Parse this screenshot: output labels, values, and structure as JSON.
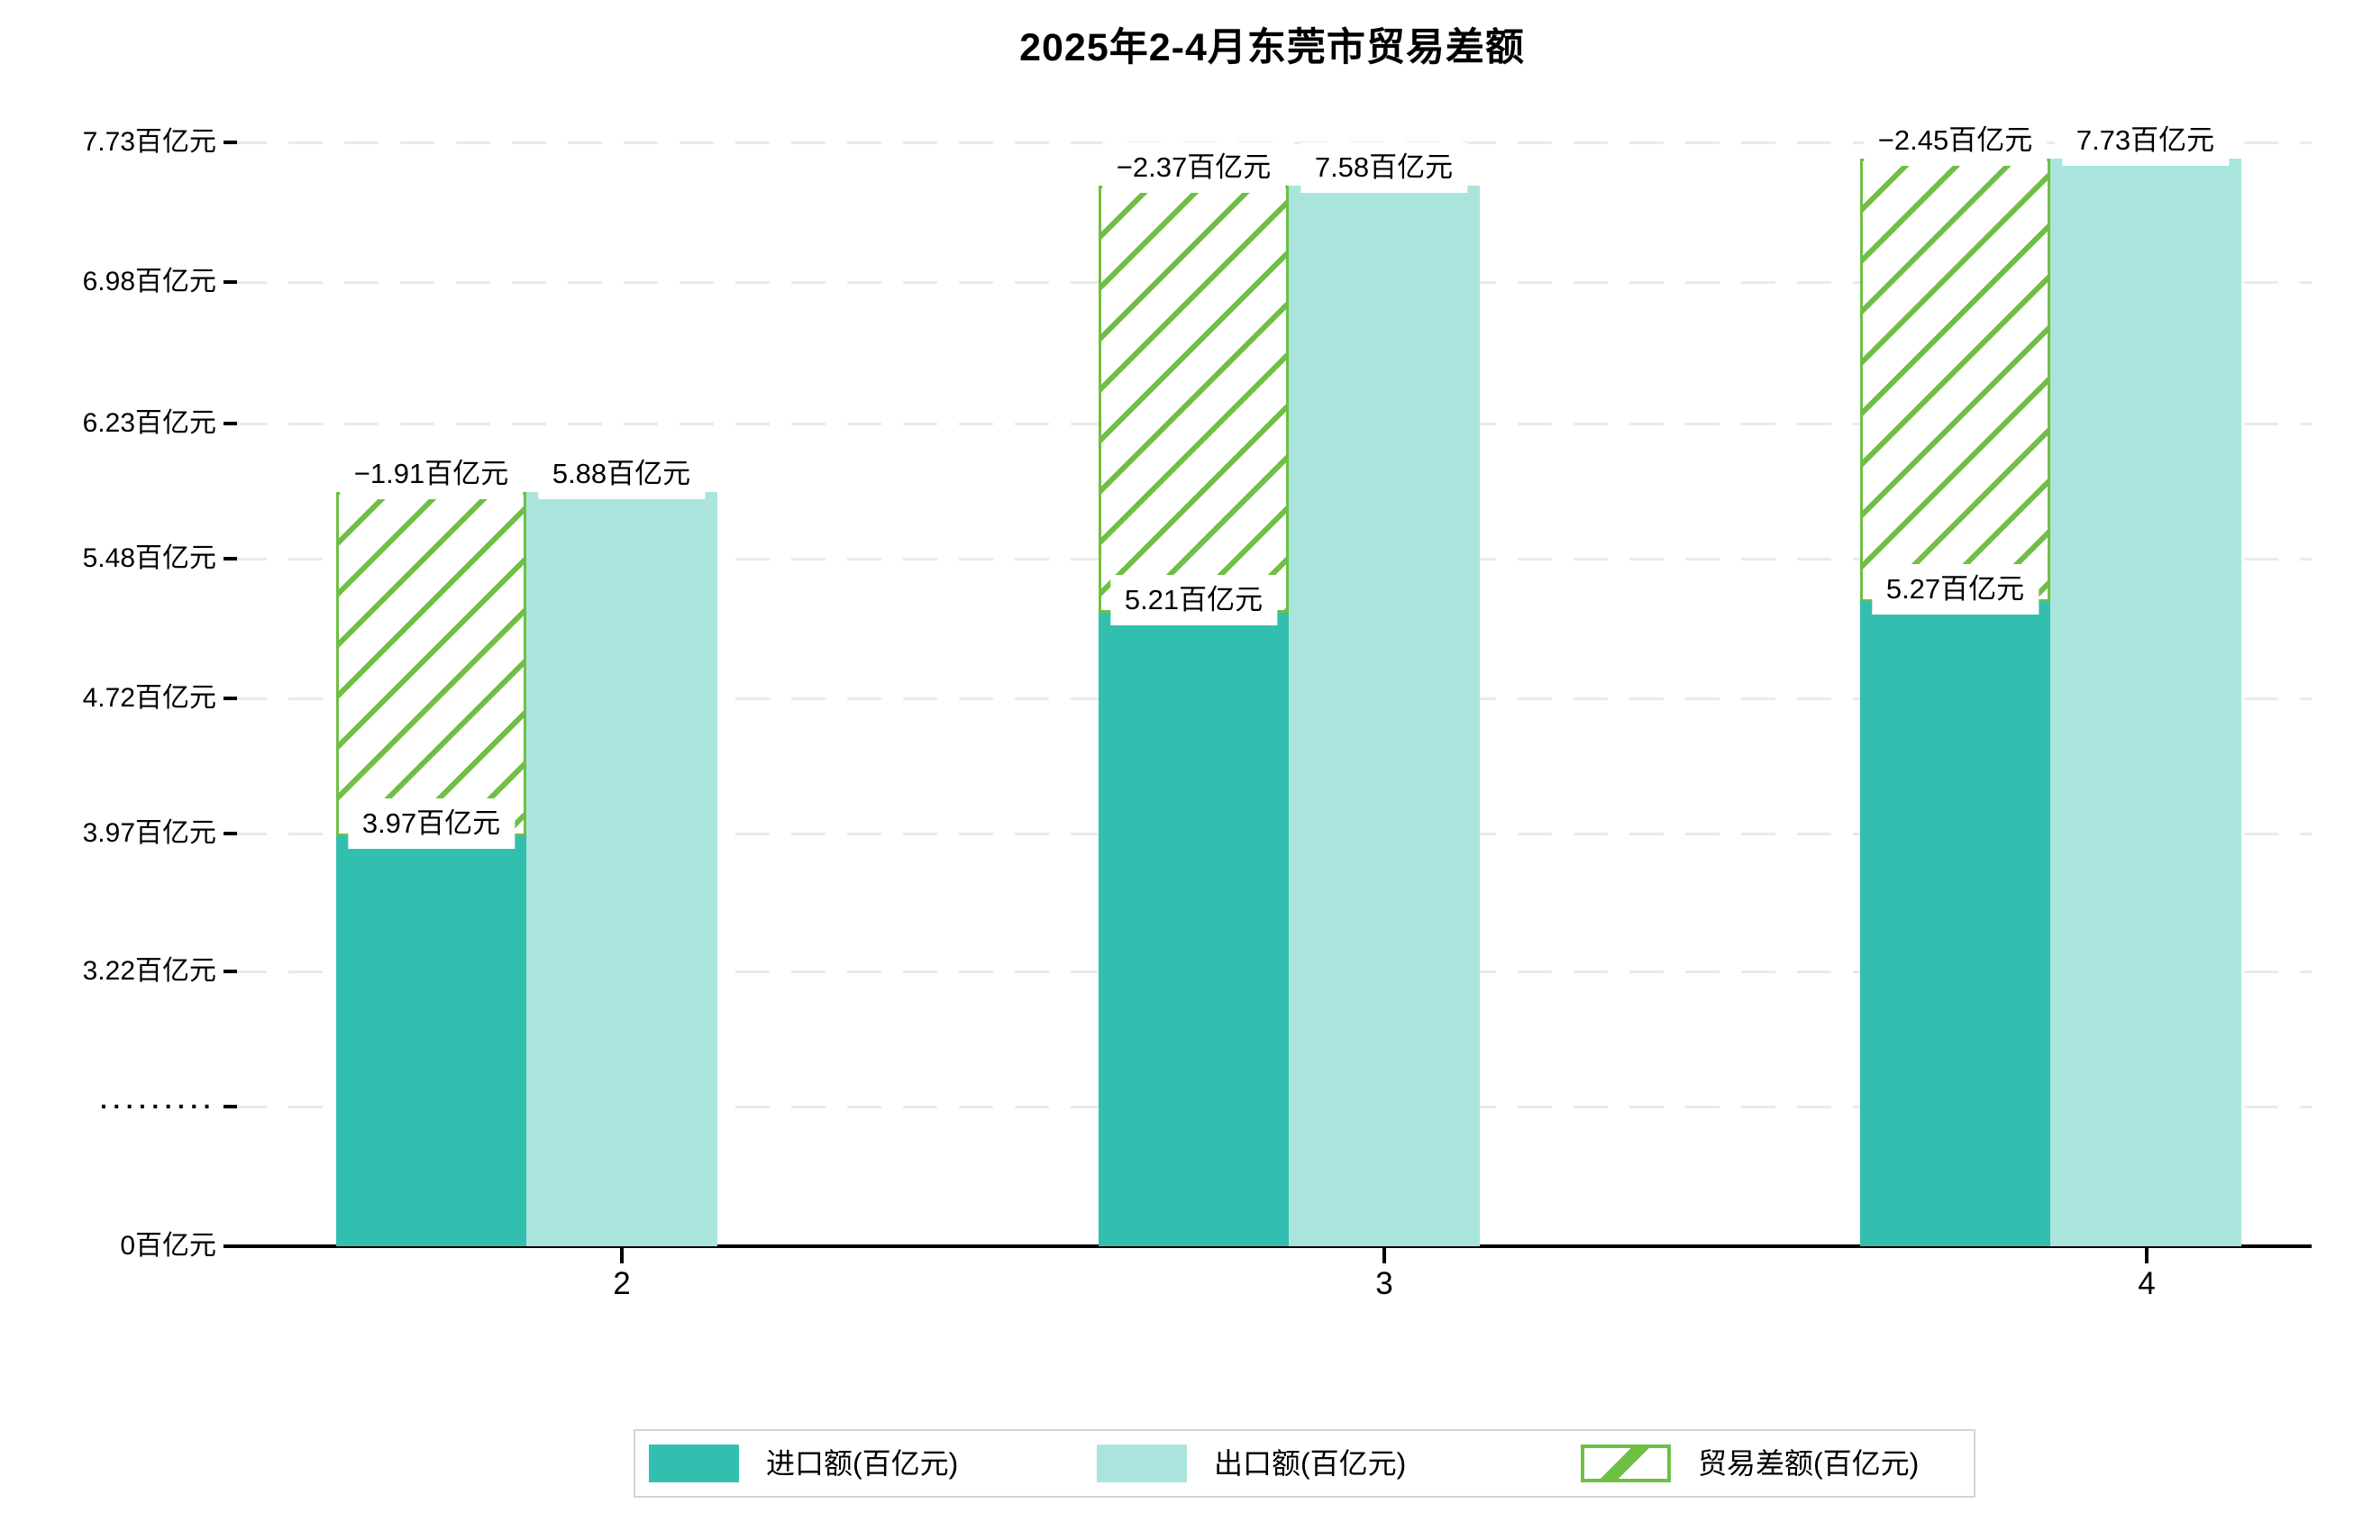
{
  "title": "2025年2-4月东莞市贸易差额",
  "chart_data": {
    "type": "bar",
    "title": "2025年2-4月东莞市贸易差额",
    "categories": [
      "2",
      "3",
      "4"
    ],
    "series": [
      {
        "name": "进口额(百亿元)",
        "values": [
          3.97,
          5.21,
          5.27
        ]
      },
      {
        "name": "出口额(百亿元)",
        "values": [
          5.88,
          7.58,
          7.73
        ]
      },
      {
        "name": "贸易差额(百亿元)",
        "values": [
          -1.91,
          -2.37,
          -2.45
        ]
      }
    ],
    "bar_labels": {
      "import": [
        "3.97百亿元",
        "5.21百亿元",
        "5.27百亿元"
      ],
      "export": [
        "5.88百亿元",
        "7.58百亿元",
        "7.73百亿元"
      ],
      "diff": [
        "−1.91百亿元",
        "−2.37百亿元",
        "−2.45百亿元"
      ]
    },
    "y_tick_labels": [
      "7.73百亿元",
      "6.98百亿元",
      "6.23百亿元",
      "5.48百亿元",
      "4.72百亿元",
      "3.97百亿元",
      "3.22百亿元",
      "·········",
      "0百亿元"
    ],
    "x_tick_labels": [
      "2",
      "3",
      "4"
    ],
    "ylim": [
      0,
      7.73
    ],
    "axis_break_between": [
      0,
      3.22
    ],
    "grid": "horizontal-dashed",
    "legend_position": "bottom"
  },
  "legend": {
    "items": [
      {
        "label": "进口额(百亿元)",
        "swatch": "solid-teal"
      },
      {
        "label": "出口额(百亿元)",
        "swatch": "solid-mint"
      },
      {
        "label": "贸易差额(百亿元)",
        "swatch": "hatched-green"
      }
    ]
  },
  "colors": {
    "import": "#33BFAF",
    "export": "#A9E5DC",
    "diff": "#6FBF45",
    "grid": "#eaeaea",
    "axis": "#000000",
    "label_box": "#ffffff",
    "legend_border": "#d4d4d4"
  }
}
